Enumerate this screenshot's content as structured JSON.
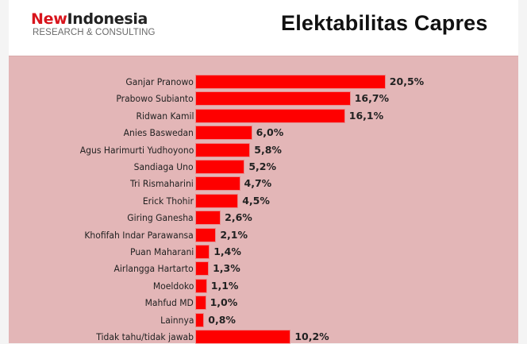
{
  "header": {
    "logo": {
      "brand_part1": "New",
      "brand_part2": "Indonesia",
      "tagline": "RESEARCH & CONSULTING"
    },
    "title": "Elektabilitas Capres"
  },
  "colors": {
    "bar": "#fe0000",
    "panel": "#e3b6b7",
    "logo_red": "#d8141c"
  },
  "chart_data": {
    "type": "bar",
    "orientation": "horizontal",
    "title": "Elektabilitas Capres",
    "xlabel": "",
    "ylabel": "",
    "grid": false,
    "legend": null,
    "value_format": "percent, comma decimal",
    "categories": [
      "Ganjar Pranowo",
      "Prabowo Subianto",
      "Ridwan Kamil",
      "Anies Baswedan",
      "Agus Harimurti Yudhoyono",
      "Sandiaga Uno",
      "Tri Rismaharini",
      "Erick Thohir",
      "Giring Ganesha",
      "Khofifah Indar Parawansa",
      "Puan Maharani",
      "Airlangga Hartarto",
      "Moeldoko",
      "Mahfud MD",
      "Lainnya",
      "Tidak tahu/tidak jawab"
    ],
    "values": [
      20.5,
      16.7,
      16.1,
      6.0,
      5.8,
      5.2,
      4.7,
      4.5,
      2.6,
      2.1,
      1.4,
      1.3,
      1.1,
      1.0,
      0.8,
      10.2
    ],
    "value_labels": [
      "20,5%",
      "16,7%",
      "16,1%",
      "6,0%",
      "5,8%",
      "5,2%",
      "4,7%",
      "4,5%",
      "2,6%",
      "2,1%",
      "1,4%",
      "1,3%",
      "1,1%",
      "1,0%",
      "0,8%",
      "10,2%"
    ],
    "xlim": [
      0,
      25
    ]
  }
}
